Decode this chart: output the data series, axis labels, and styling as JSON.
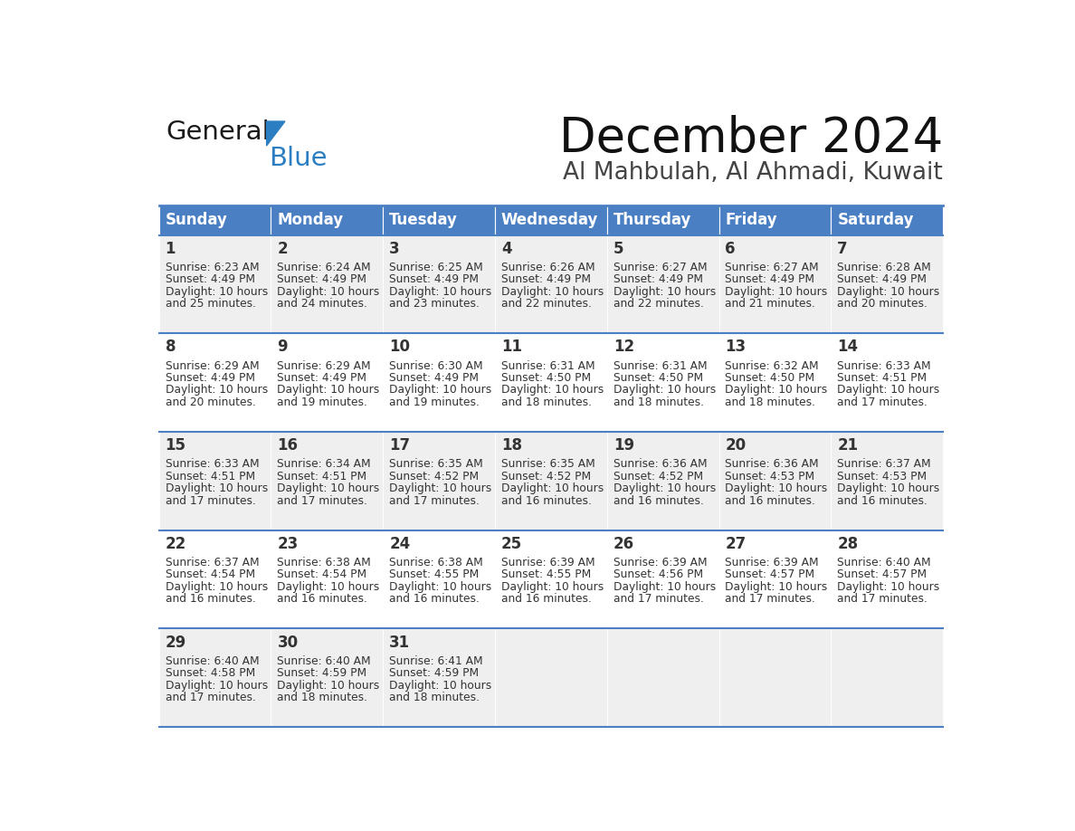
{
  "title": "December 2024",
  "subtitle": "Al Mahbulah, Al Ahmadi, Kuwait",
  "header_color": "#4B7FC4",
  "header_text_color": "#FFFFFF",
  "day_headers": [
    "Sunday",
    "Monday",
    "Tuesday",
    "Wednesday",
    "Thursday",
    "Friday",
    "Saturday"
  ],
  "row_bg_colors": [
    "#EFEFEF",
    "#FFFFFF"
  ],
  "border_color": "#4B7FC4",
  "text_color": "#333333",
  "days": [
    {
      "day": 1,
      "row": 0,
      "col": 0,
      "sunrise": "6:23 AM",
      "sunset": "4:49 PM",
      "daylight_hours": 10,
      "daylight_minutes": 25
    },
    {
      "day": 2,
      "row": 0,
      "col": 1,
      "sunrise": "6:24 AM",
      "sunset": "4:49 PM",
      "daylight_hours": 10,
      "daylight_minutes": 24
    },
    {
      "day": 3,
      "row": 0,
      "col": 2,
      "sunrise": "6:25 AM",
      "sunset": "4:49 PM",
      "daylight_hours": 10,
      "daylight_minutes": 23
    },
    {
      "day": 4,
      "row": 0,
      "col": 3,
      "sunrise": "6:26 AM",
      "sunset": "4:49 PM",
      "daylight_hours": 10,
      "daylight_minutes": 22
    },
    {
      "day": 5,
      "row": 0,
      "col": 4,
      "sunrise": "6:27 AM",
      "sunset": "4:49 PM",
      "daylight_hours": 10,
      "daylight_minutes": 22
    },
    {
      "day": 6,
      "row": 0,
      "col": 5,
      "sunrise": "6:27 AM",
      "sunset": "4:49 PM",
      "daylight_hours": 10,
      "daylight_minutes": 21
    },
    {
      "day": 7,
      "row": 0,
      "col": 6,
      "sunrise": "6:28 AM",
      "sunset": "4:49 PM",
      "daylight_hours": 10,
      "daylight_minutes": 20
    },
    {
      "day": 8,
      "row": 1,
      "col": 0,
      "sunrise": "6:29 AM",
      "sunset": "4:49 PM",
      "daylight_hours": 10,
      "daylight_minutes": 20
    },
    {
      "day": 9,
      "row": 1,
      "col": 1,
      "sunrise": "6:29 AM",
      "sunset": "4:49 PM",
      "daylight_hours": 10,
      "daylight_minutes": 19
    },
    {
      "day": 10,
      "row": 1,
      "col": 2,
      "sunrise": "6:30 AM",
      "sunset": "4:49 PM",
      "daylight_hours": 10,
      "daylight_minutes": 19
    },
    {
      "day": 11,
      "row": 1,
      "col": 3,
      "sunrise": "6:31 AM",
      "sunset": "4:50 PM",
      "daylight_hours": 10,
      "daylight_minutes": 18
    },
    {
      "day": 12,
      "row": 1,
      "col": 4,
      "sunrise": "6:31 AM",
      "sunset": "4:50 PM",
      "daylight_hours": 10,
      "daylight_minutes": 18
    },
    {
      "day": 13,
      "row": 1,
      "col": 5,
      "sunrise": "6:32 AM",
      "sunset": "4:50 PM",
      "daylight_hours": 10,
      "daylight_minutes": 18
    },
    {
      "day": 14,
      "row": 1,
      "col": 6,
      "sunrise": "6:33 AM",
      "sunset": "4:51 PM",
      "daylight_hours": 10,
      "daylight_minutes": 17
    },
    {
      "day": 15,
      "row": 2,
      "col": 0,
      "sunrise": "6:33 AM",
      "sunset": "4:51 PM",
      "daylight_hours": 10,
      "daylight_minutes": 17
    },
    {
      "day": 16,
      "row": 2,
      "col": 1,
      "sunrise": "6:34 AM",
      "sunset": "4:51 PM",
      "daylight_hours": 10,
      "daylight_minutes": 17
    },
    {
      "day": 17,
      "row": 2,
      "col": 2,
      "sunrise": "6:35 AM",
      "sunset": "4:52 PM",
      "daylight_hours": 10,
      "daylight_minutes": 17
    },
    {
      "day": 18,
      "row": 2,
      "col": 3,
      "sunrise": "6:35 AM",
      "sunset": "4:52 PM",
      "daylight_hours": 10,
      "daylight_minutes": 16
    },
    {
      "day": 19,
      "row": 2,
      "col": 4,
      "sunrise": "6:36 AM",
      "sunset": "4:52 PM",
      "daylight_hours": 10,
      "daylight_minutes": 16
    },
    {
      "day": 20,
      "row": 2,
      "col": 5,
      "sunrise": "6:36 AM",
      "sunset": "4:53 PM",
      "daylight_hours": 10,
      "daylight_minutes": 16
    },
    {
      "day": 21,
      "row": 2,
      "col": 6,
      "sunrise": "6:37 AM",
      "sunset": "4:53 PM",
      "daylight_hours": 10,
      "daylight_minutes": 16
    },
    {
      "day": 22,
      "row": 3,
      "col": 0,
      "sunrise": "6:37 AM",
      "sunset": "4:54 PM",
      "daylight_hours": 10,
      "daylight_minutes": 16
    },
    {
      "day": 23,
      "row": 3,
      "col": 1,
      "sunrise": "6:38 AM",
      "sunset": "4:54 PM",
      "daylight_hours": 10,
      "daylight_minutes": 16
    },
    {
      "day": 24,
      "row": 3,
      "col": 2,
      "sunrise": "6:38 AM",
      "sunset": "4:55 PM",
      "daylight_hours": 10,
      "daylight_minutes": 16
    },
    {
      "day": 25,
      "row": 3,
      "col": 3,
      "sunrise": "6:39 AM",
      "sunset": "4:55 PM",
      "daylight_hours": 10,
      "daylight_minutes": 16
    },
    {
      "day": 26,
      "row": 3,
      "col": 4,
      "sunrise": "6:39 AM",
      "sunset": "4:56 PM",
      "daylight_hours": 10,
      "daylight_minutes": 17
    },
    {
      "day": 27,
      "row": 3,
      "col": 5,
      "sunrise": "6:39 AM",
      "sunset": "4:57 PM",
      "daylight_hours": 10,
      "daylight_minutes": 17
    },
    {
      "day": 28,
      "row": 3,
      "col": 6,
      "sunrise": "6:40 AM",
      "sunset": "4:57 PM",
      "daylight_hours": 10,
      "daylight_minutes": 17
    },
    {
      "day": 29,
      "row": 4,
      "col": 0,
      "sunrise": "6:40 AM",
      "sunset": "4:58 PM",
      "daylight_hours": 10,
      "daylight_minutes": 17
    },
    {
      "day": 30,
      "row": 4,
      "col": 1,
      "sunrise": "6:40 AM",
      "sunset": "4:59 PM",
      "daylight_hours": 10,
      "daylight_minutes": 18
    },
    {
      "day": 31,
      "row": 4,
      "col": 2,
      "sunrise": "6:41 AM",
      "sunset": "4:59 PM",
      "daylight_hours": 10,
      "daylight_minutes": 18
    }
  ],
  "num_rows": 5,
  "num_cols": 7,
  "logo_color_general": "#1a1a1a",
  "logo_color_blue": "#2B7EC1",
  "logo_triangle_color": "#2B7EC1"
}
